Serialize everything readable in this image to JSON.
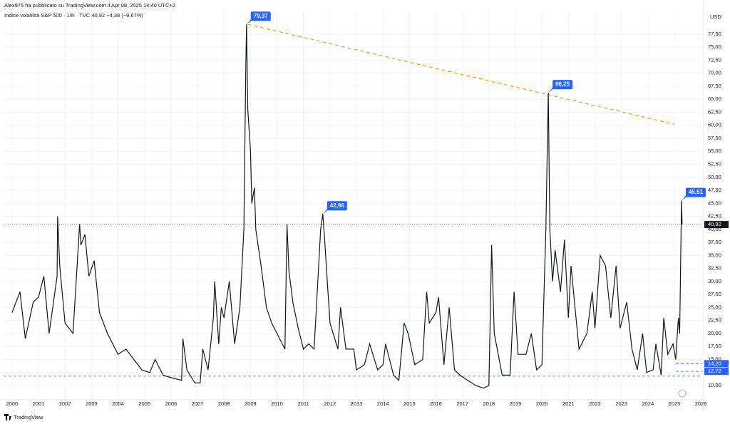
{
  "chart_data": {
    "type": "line",
    "title": "Alex975 ha pubblicato su TradingView.com il Apr 08, 2025 14:40 UTC+2",
    "legend_info": "· 1W · TVC",
    "change_text": "−4,38 (−9,67%)",
    "currency": "USD",
    "brand": "TradingView",
    "grid": true,
    "last_value": {
      "value": 40.92,
      "label": "40,92"
    },
    "x": [
      2000.0,
      2000.3,
      2000.5,
      2000.8,
      2001.0,
      2001.2,
      2001.4,
      2001.7,
      2001.72,
      2001.8,
      2002.0,
      2002.3,
      2002.55,
      2002.6,
      2002.75,
      2002.9,
      2003.1,
      2003.3,
      2003.6,
      2004.0,
      2004.3,
      2004.6,
      2004.9,
      2005.2,
      2005.4,
      2005.7,
      2006.0,
      2006.4,
      2006.45,
      2006.6,
      2006.9,
      2007.1,
      2007.2,
      2007.4,
      2007.6,
      2007.65,
      2007.8,
      2007.9,
      2008.0,
      2008.2,
      2008.4,
      2008.6,
      2008.75,
      2008.82,
      2008.85,
      2008.9,
      2009.0,
      2009.05,
      2009.15,
      2009.2,
      2009.4,
      2009.6,
      2009.8,
      2010.0,
      2010.3,
      2010.38,
      2010.45,
      2010.6,
      2010.8,
      2011.0,
      2011.2,
      2011.4,
      2011.65,
      2011.73,
      2011.8,
      2011.9,
      2012.0,
      2012.3,
      2012.4,
      2012.6,
      2012.9,
      2013.0,
      2013.3,
      2013.5,
      2013.8,
      2014.0,
      2014.1,
      2014.4,
      2014.6,
      2014.8,
      2014.95,
      2015.2,
      2015.5,
      2015.65,
      2015.75,
      2016.0,
      2016.1,
      2016.3,
      2016.5,
      2016.7,
      2016.9,
      2017.2,
      2017.5,
      2017.8,
      2018.0,
      2018.1,
      2018.2,
      2018.5,
      2018.8,
      2018.95,
      2019.1,
      2019.4,
      2019.6,
      2019.8,
      2020.0,
      2020.15,
      2020.24,
      2020.3,
      2020.4,
      2020.5,
      2020.7,
      2020.85,
      2021.0,
      2021.1,
      2021.4,
      2021.7,
      2021.9,
      2022.0,
      2022.2,
      2022.4,
      2022.6,
      2022.8,
      2022.95,
      2023.2,
      2023.4,
      2023.6,
      2023.8,
      2023.95,
      2024.2,
      2024.3,
      2024.5,
      2024.6,
      2024.75,
      2024.95,
      2025.05,
      2025.15,
      2025.2,
      2025.27,
      2025.29
    ],
    "series": [
      {
        "name": "Indice volatilità S&P 500",
        "color": "#131722",
        "values": [
          24,
          28,
          19,
          26,
          27,
          31,
          20,
          31,
          42.5,
          33,
          22,
          20,
          41,
          37,
          39,
          31,
          34,
          24,
          20,
          16,
          17,
          15,
          13,
          12.5,
          15,
          12,
          11.5,
          11,
          19,
          13,
          10.5,
          10.5,
          17,
          13,
          23,
          30,
          18,
          25,
          23,
          30,
          18,
          25,
          40,
          70,
          79.37,
          63,
          55,
          45,
          48,
          40,
          33,
          25,
          22,
          20,
          17,
          41,
          32,
          26,
          21,
          17,
          18,
          17,
          40,
          42.96,
          38,
          30,
          22,
          17,
          25,
          17,
          17,
          13,
          14,
          18,
          13,
          14,
          18,
          12,
          11,
          22,
          20,
          14,
          15,
          28,
          22,
          24,
          27,
          14,
          25,
          13,
          12,
          11,
          10,
          9.5,
          10,
          37,
          20,
          12,
          12,
          28,
          16,
          16,
          20,
          13,
          14,
          40,
          66.25,
          40,
          30,
          36,
          28,
          38,
          23,
          33,
          17,
          20,
          28,
          21,
          35,
          33,
          23,
          33,
          21,
          26,
          17,
          13,
          20,
          12.5,
          13,
          18,
          12,
          23,
          16,
          18,
          15,
          23,
          20,
          45.51,
          40.92
        ]
      }
    ],
    "annotations": [
      {
        "x": 2008.85,
        "value": 79.37,
        "label": "79,37"
      },
      {
        "x": 2020.24,
        "value": 66.25,
        "label": "66,25"
      },
      {
        "x": 2011.73,
        "value": 42.96,
        "label": "42,96"
      },
      {
        "x": 2025.27,
        "value": 45.51,
        "label": "45,51"
      }
    ],
    "trendline": {
      "x": [
        2008.9,
        2025.0
      ],
      "values": [
        79.37,
        60.2
      ],
      "color": "#ff9800"
    },
    "support": {
      "value": 11.8,
      "color": "#2962ff"
    },
    "price_tags": [
      {
        "value": 14.2,
        "label": "14,20",
        "color": "#2962ff"
      },
      {
        "value": 12.72,
        "label": "12,72",
        "color": "#2962ff"
      }
    ],
    "xlim": [
      1999.68,
      2026.05
    ],
    "ylim": [
      7.4,
      82
    ],
    "xticks": [
      2000,
      2001,
      2002,
      2003,
      2004,
      2005,
      2006,
      2007,
      2008,
      2009,
      2010,
      2011,
      2012,
      2013,
      2014,
      2015,
      2016,
      2017,
      2018,
      2019,
      2020,
      2021,
      2022,
      2023,
      2024,
      2025,
      2026
    ],
    "yticks": [
      {
        "value": 10,
        "label": "10,00"
      },
      {
        "value": 12.5,
        "label": "12,50"
      },
      {
        "value": 15,
        "label": "15,00"
      },
      {
        "value": 17.5,
        "label": "17,50"
      },
      {
        "value": 20,
        "label": "20,00"
      },
      {
        "value": 22.5,
        "label": "22,50"
      },
      {
        "value": 25,
        "label": "25,00"
      },
      {
        "value": 27.5,
        "label": "27,50"
      },
      {
        "value": 30,
        "label": "30,00"
      },
      {
        "value": 32.5,
        "label": "32,50"
      },
      {
        "value": 35,
        "label": "35,00"
      },
      {
        "value": 37.5,
        "label": "37,50"
      },
      {
        "value": 40,
        "label": "40,00"
      },
      {
        "value": 42.5,
        "label": "42,50"
      },
      {
        "value": 45,
        "label": "45,00"
      },
      {
        "value": 47.5,
        "label": "47,50"
      },
      {
        "value": 50,
        "label": "50,00"
      },
      {
        "value": 52.5,
        "label": "52,50"
      },
      {
        "value": 55,
        "label": "55,00"
      },
      {
        "value": 57.5,
        "label": "57,50"
      },
      {
        "value": 60,
        "label": "60,00"
      },
      {
        "value": 62.5,
        "label": "62,50"
      },
      {
        "value": 65,
        "label": "65,00"
      },
      {
        "value": 67.5,
        "label": "67,50"
      },
      {
        "value": 70,
        "label": "70,00"
      },
      {
        "value": 72.5,
        "label": "72,50"
      },
      {
        "value": 75,
        "label": "75,00"
      },
      {
        "value": 77.5,
        "label": "77,50"
      }
    ]
  }
}
